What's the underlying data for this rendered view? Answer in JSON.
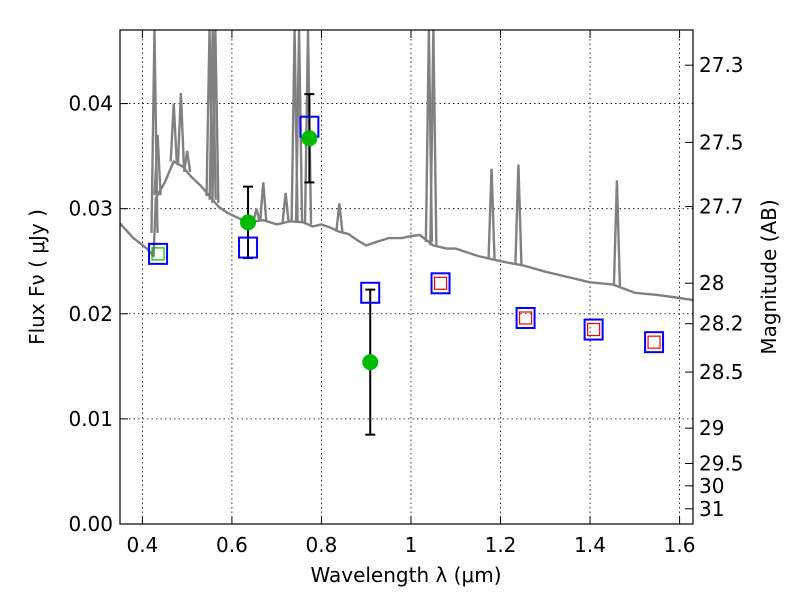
{
  "chart_data": {
    "type": "scatter",
    "title": "",
    "xlabel": "Wavelength  λ (μm)",
    "ylabel": "Flux  Fν  ( μJy )",
    "y2label": "Magnitude (AB)",
    "xlim": [
      0.35,
      1.63
    ],
    "ylim": [
      0.0,
      0.047
    ],
    "grid": true,
    "x_ticks": [
      "0.4",
      "0.6",
      "0.8",
      "1",
      "1.2",
      "1.4",
      "1.6"
    ],
    "y_ticks": [
      "0.00",
      "0.01",
      "0.02",
      "0.03",
      "0.04"
    ],
    "y2_ticks": [
      "27.3",
      "27.5",
      "27.7",
      "28",
      "28.2",
      "28.5",
      "29",
      "29.5",
      "30",
      "31"
    ],
    "colors": {
      "spectrum": "#808080",
      "observed": "#00bb00",
      "model_box": "#0000ff",
      "inner_box_green": "#00bb00",
      "inner_box_red": "#ff0000",
      "errorbar": "#000000"
    },
    "series": [
      {
        "kind": "spectrum",
        "points": [
          [
            0.35,
            0.0286
          ],
          [
            0.38,
            0.0272
          ],
          [
            0.41,
            0.0262
          ],
          [
            0.425,
            0.0255
          ],
          [
            0.43,
            0.031
          ],
          [
            0.45,
            0.0325
          ],
          [
            0.47,
            0.0345
          ],
          [
            0.49,
            0.034
          ],
          [
            0.51,
            0.033
          ],
          [
            0.53,
            0.0322
          ],
          [
            0.55,
            0.0312
          ],
          [
            0.57,
            0.0302
          ],
          [
            0.59,
            0.0296
          ],
          [
            0.61,
            0.0292
          ],
          [
            0.63,
            0.0288
          ],
          [
            0.65,
            0.0288
          ],
          [
            0.67,
            0.0289
          ],
          [
            0.7,
            0.0285
          ],
          [
            0.73,
            0.0288
          ],
          [
            0.76,
            0.0287
          ],
          [
            0.78,
            0.0283
          ],
          [
            0.8,
            0.0285
          ],
          [
            0.82,
            0.0282
          ],
          [
            0.84,
            0.0278
          ],
          [
            0.86,
            0.0276
          ],
          [
            0.88,
            0.027
          ],
          [
            0.9,
            0.0265
          ],
          [
            0.92,
            0.0268
          ],
          [
            0.95,
            0.0272
          ],
          [
            0.98,
            0.0272
          ],
          [
            1.0,
            0.0274
          ],
          [
            1.02,
            0.0275
          ],
          [
            1.05,
            0.0265
          ],
          [
            1.08,
            0.0262
          ],
          [
            1.1,
            0.0262
          ],
          [
            1.15,
            0.0255
          ],
          [
            1.2,
            0.025
          ],
          [
            1.25,
            0.0246
          ],
          [
            1.3,
            0.024
          ],
          [
            1.35,
            0.0235
          ],
          [
            1.4,
            0.023
          ],
          [
            1.45,
            0.0228
          ],
          [
            1.5,
            0.022
          ],
          [
            1.55,
            0.0218
          ],
          [
            1.6,
            0.0215
          ],
          [
            1.63,
            0.0213
          ]
        ],
        "lines": [
          [
            0.427,
            0.047
          ],
          [
            0.434,
            0.037
          ],
          [
            0.47,
            0.04
          ],
          [
            0.486,
            0.041
          ],
          [
            0.5,
            0.0355
          ],
          [
            0.55,
            0.047
          ],
          [
            0.557,
            0.047
          ],
          [
            0.563,
            0.047
          ],
          [
            0.655,
            0.03
          ],
          [
            0.67,
            0.0325
          ],
          [
            0.72,
            0.0315
          ],
          [
            0.74,
            0.047
          ],
          [
            0.75,
            0.047
          ],
          [
            0.77,
            0.047
          ],
          [
            0.84,
            0.0305
          ],
          [
            1.04,
            0.047
          ],
          [
            1.05,
            0.047
          ],
          [
            1.18,
            0.0338
          ],
          [
            1.24,
            0.0342
          ],
          [
            1.46,
            0.0327
          ]
        ]
      },
      {
        "kind": "observed",
        "points": [
          [
            0.636,
            0.0287,
            0.0034
          ],
          [
            0.773,
            0.0367,
            0.0042
          ],
          [
            0.909,
            0.0154,
            0.0069
          ]
        ]
      },
      {
        "kind": "model-box",
        "points": [
          [
            0.435,
            0.0257,
            "green"
          ],
          [
            0.636,
            0.0263,
            ""
          ],
          [
            0.773,
            0.0378,
            ""
          ],
          [
            0.909,
            0.022,
            ""
          ],
          [
            1.066,
            0.0229,
            "red"
          ],
          [
            1.256,
            0.0196,
            "red"
          ],
          [
            1.408,
            0.0185,
            "red"
          ],
          [
            1.543,
            0.0173,
            "red"
          ]
        ]
      }
    ]
  }
}
